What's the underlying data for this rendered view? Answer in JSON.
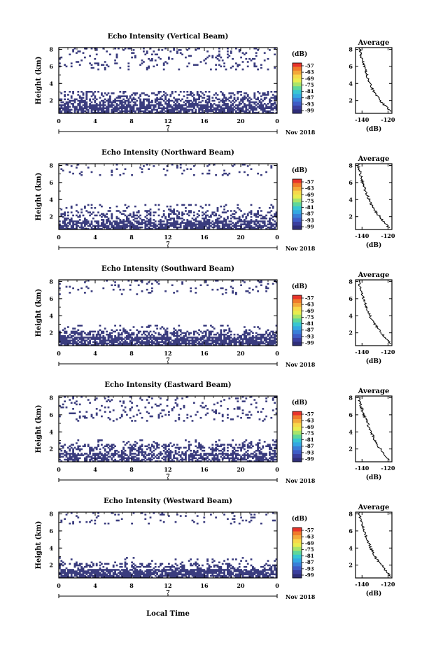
{
  "figure": {
    "xaxis_title": "Local Time"
  },
  "chart_data": {
    "type": "heatmap",
    "colorbar": {
      "unit_label": "(dB)",
      "ticks": [
        "-57",
        "-63",
        "-69",
        "-75",
        "-81",
        "-87",
        "-93",
        "-99"
      ],
      "colors": [
        "#e8332a",
        "#f07a2a",
        "#f3a93a",
        "#f7d84a",
        "#e9ec4f",
        "#a8e46a",
        "#5fd79a",
        "#38c6d2",
        "#34a8e2",
        "#3a7fd8",
        "#3f5cc6",
        "#3b3f9e",
        "#2f2e78"
      ]
    },
    "x_ticks": [
      "0",
      "4",
      "8",
      "12",
      "16",
      "20",
      "0"
    ],
    "date_tick": "7",
    "date_label": "Nov 2018",
    "y_ticks": [
      "2",
      "4",
      "6",
      "8"
    ],
    "ylabel": "Height (km)",
    "xlim": [
      0,
      24
    ],
    "ylim": [
      0.5,
      8.2
    ],
    "cell_color": "#3a3c7e",
    "avg_xlabel": "(dB)",
    "avg_title": "Average",
    "avg_xticks": [
      "-140",
      "-120"
    ],
    "avg_xlim": [
      -145,
      -117
    ],
    "avg_yticks": [
      "2",
      "4",
      "6",
      "8"
    ],
    "panels": [
      {
        "title": "Echo Intensity (Vertical Beam)",
        "echo_layers": [
          [
            0.5,
            1.5,
            0.75
          ],
          [
            1.5,
            2.3,
            0.5
          ],
          [
            2.3,
            3.1,
            0.28
          ],
          [
            5.5,
            8.2,
            0.1
          ]
        ],
        "avg_profile": [
          [
            -118,
            0.7
          ],
          [
            -121,
            1.2
          ],
          [
            -125,
            1.8
          ],
          [
            -128,
            2.4
          ],
          [
            -131,
            3.0
          ],
          [
            -133,
            3.6
          ],
          [
            -135,
            4.3
          ],
          [
            -136.5,
            5.0
          ],
          [
            -138,
            5.8
          ],
          [
            -139.5,
            6.6
          ],
          [
            -141,
            7.4
          ],
          [
            -142,
            8.1
          ]
        ]
      },
      {
        "title": "Echo Intensity (Northward Beam)",
        "echo_layers": [
          [
            0.5,
            1.5,
            0.7
          ],
          [
            1.5,
            2.8,
            0.3
          ],
          [
            2.8,
            3.4,
            0.1
          ],
          [
            6.8,
            8.2,
            0.08
          ]
        ],
        "avg_profile": [
          [
            -119,
            0.7
          ],
          [
            -122,
            1.2
          ],
          [
            -126,
            1.9
          ],
          [
            -129,
            2.5
          ],
          [
            -132,
            3.1
          ],
          [
            -134,
            3.8
          ],
          [
            -136,
            4.5
          ],
          [
            -138,
            5.2
          ],
          [
            -139.5,
            6.0
          ],
          [
            -141,
            6.8
          ],
          [
            -142,
            7.5
          ],
          [
            -143,
            8.1
          ]
        ]
      },
      {
        "title": "Echo Intensity (Southward Beam)",
        "echo_layers": [
          [
            0.5,
            1.5,
            0.8
          ],
          [
            1.5,
            2.3,
            0.45
          ],
          [
            2.3,
            3.0,
            0.12
          ],
          [
            6.5,
            8.2,
            0.08
          ]
        ],
        "avg_profile": [
          [
            -118,
            0.7
          ],
          [
            -121,
            1.2
          ],
          [
            -124,
            1.8
          ],
          [
            -127,
            2.4
          ],
          [
            -130,
            3.0
          ],
          [
            -133,
            3.7
          ],
          [
            -135,
            4.4
          ],
          [
            -137,
            5.1
          ],
          [
            -138.5,
            5.8
          ],
          [
            -140,
            6.6
          ],
          [
            -141.5,
            7.3
          ],
          [
            -142.5,
            8.1
          ]
        ]
      },
      {
        "title": "Echo Intensity (Eastward Beam)",
        "echo_layers": [
          [
            0.5,
            1.5,
            0.6
          ],
          [
            1.5,
            2.6,
            0.35
          ],
          [
            2.6,
            3.2,
            0.1
          ],
          [
            5.2,
            8.2,
            0.1
          ]
        ],
        "avg_profile": [
          [
            -119,
            0.7
          ],
          [
            -122,
            1.3
          ],
          [
            -126,
            2.0
          ],
          [
            -129,
            2.7
          ],
          [
            -131,
            3.3
          ],
          [
            -133,
            4.0
          ],
          [
            -135,
            4.7
          ],
          [
            -137,
            5.4
          ],
          [
            -139,
            6.1
          ],
          [
            -140.5,
            6.8
          ],
          [
            -141.5,
            7.5
          ],
          [
            -142.5,
            8.1
          ]
        ]
      },
      {
        "title": "Echo Intensity (Westward Beam)",
        "echo_layers": [
          [
            0.5,
            1.6,
            0.8
          ],
          [
            1.6,
            2.3,
            0.35
          ],
          [
            2.3,
            3.0,
            0.08
          ],
          [
            6.8,
            8.2,
            0.08
          ]
        ],
        "avg_profile": [
          [
            -118,
            0.7
          ],
          [
            -121,
            1.2
          ],
          [
            -124,
            1.8
          ],
          [
            -127,
            2.4
          ],
          [
            -130,
            3.0
          ],
          [
            -132,
            3.6
          ],
          [
            -134,
            4.3
          ],
          [
            -136,
            5.0
          ],
          [
            -138,
            5.7
          ],
          [
            -139.5,
            6.5
          ],
          [
            -141,
            7.3
          ],
          [
            -142.5,
            8.1
          ]
        ]
      }
    ]
  }
}
